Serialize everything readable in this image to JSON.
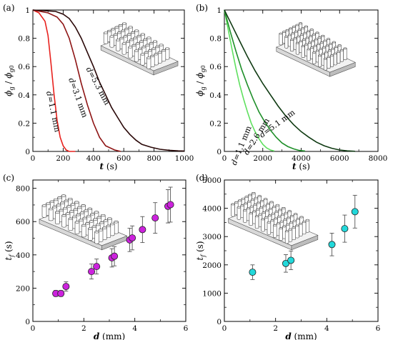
{
  "colors": {
    "a_short": "#e8211d",
    "a_mid": "#8e1414",
    "a_long": "#2a0808",
    "b_light": "#5fe05f",
    "b_mid": "#1f8f2a",
    "b_dark": "#0f3a12",
    "c_marker": "#cc22dd",
    "d_marker": "#22d8da"
  },
  "icons": [
    "pillar-array-sparse-icon",
    "pillar-array-dense-icon"
  ],
  "chart_data": [
    {
      "id": "a",
      "type": "line",
      "panel_label": "(a)",
      "xlabel_var": "t",
      "xlabel_unit": "(s)",
      "ylabel_num": "ϕ",
      "ylabel_num_sub": "g",
      "ylabel_den": "ϕ",
      "ylabel_den_sub": "g0",
      "xlim": [
        0,
        1000
      ],
      "ylim": [
        0,
        1
      ],
      "xticks": [
        "0",
        "200",
        "400",
        "600",
        "800",
        "1000"
      ],
      "yticks": [
        "0",
        "0.2",
        "0.4",
        "0.6",
        "0.8",
        "1"
      ],
      "xtick_values": [
        0,
        200,
        400,
        600,
        800,
        1000
      ],
      "ytick_values": [
        0,
        0.2,
        0.4,
        0.6,
        0.8,
        1
      ],
      "series": [
        {
          "name": "d=1.1 mm",
          "color_key": "a_short",
          "x": [
            0,
            40,
            80,
            100,
            120,
            140,
            160,
            180,
            200,
            220,
            240,
            280
          ],
          "y": [
            1,
            0.98,
            0.92,
            0.82,
            0.62,
            0.4,
            0.22,
            0.1,
            0.04,
            0.01,
            0.0,
            0.0
          ]
        },
        {
          "name": "d=3.1 mm",
          "color_key": "a_mid",
          "x": [
            0,
            100,
            160,
            200,
            240,
            280,
            320,
            360,
            400,
            440,
            480,
            540,
            580
          ],
          "y": [
            1,
            0.98,
            0.95,
            0.9,
            0.8,
            0.65,
            0.48,
            0.33,
            0.2,
            0.1,
            0.04,
            0.01,
            0.0
          ]
        },
        {
          "name": "d=5.3 mm",
          "color_key": "a_long",
          "x": [
            0,
            150,
            200,
            240,
            280,
            320,
            360,
            400,
            440,
            480,
            520,
            560,
            600,
            640,
            680,
            720,
            780,
            840,
            900,
            960,
            1000
          ],
          "y": [
            1,
            0.99,
            0.97,
            0.94,
            0.88,
            0.8,
            0.7,
            0.6,
            0.49,
            0.4,
            0.31,
            0.24,
            0.17,
            0.12,
            0.08,
            0.05,
            0.03,
            0.015,
            0.008,
            0.004,
            0.003
          ]
        }
      ]
    },
    {
      "id": "b",
      "type": "line",
      "panel_label": "(b)",
      "xlabel_var": "t",
      "xlabel_unit": "(s)",
      "ylabel_num": "ϕ",
      "ylabel_num_sub": "g",
      "ylabel_den": "ϕ",
      "ylabel_den_sub": "g0",
      "xlim": [
        0,
        8000
      ],
      "ylim": [
        0,
        1
      ],
      "xticks": [
        "0",
        "2000",
        "4000",
        "6000",
        "8000"
      ],
      "yticks": [
        "0",
        "0.2",
        "0.4",
        "0.6",
        "0.8",
        "1"
      ],
      "xtick_values": [
        0,
        2000,
        4000,
        6000,
        8000
      ],
      "ytick_values": [
        0,
        0.2,
        0.4,
        0.6,
        0.8,
        1
      ],
      "series": [
        {
          "name": "d=1.1 mm",
          "color_key": "b_light",
          "x": [
            0,
            200,
            400,
            600,
            800,
            1000,
            1200,
            1400,
            1600,
            1800,
            2000,
            2200,
            2400,
            2600
          ],
          "y": [
            1,
            0.86,
            0.72,
            0.59,
            0.47,
            0.37,
            0.28,
            0.2,
            0.14,
            0.09,
            0.05,
            0.025,
            0.01,
            0.003
          ]
        },
        {
          "name": "d=2.6 mm",
          "color_key": "b_mid",
          "x": [
            0,
            300,
            600,
            900,
            1200,
            1500,
            1800,
            2100,
            2400,
            2700,
            3000,
            3300,
            3600,
            3900,
            4200
          ],
          "y": [
            1,
            0.85,
            0.71,
            0.58,
            0.47,
            0.37,
            0.28,
            0.21,
            0.15,
            0.1,
            0.06,
            0.035,
            0.018,
            0.007,
            0.003
          ]
        },
        {
          "name": "d=5.1 mm",
          "color_key": "b_dark",
          "x": [
            0,
            400,
            800,
            1200,
            1600,
            2000,
            2400,
            2800,
            3200,
            3600,
            4000,
            4400,
            4800,
            5200,
            5600,
            6000,
            6400,
            6800
          ],
          "y": [
            1,
            0.89,
            0.78,
            0.67,
            0.57,
            0.48,
            0.4,
            0.32,
            0.25,
            0.19,
            0.14,
            0.1,
            0.065,
            0.04,
            0.022,
            0.01,
            0.004,
            0.001
          ]
        }
      ]
    },
    {
      "id": "c",
      "type": "scatter",
      "panel_label": "(c)",
      "xlabel_var": "d",
      "xlabel_unit": "(mm)",
      "ylabel_var": "t",
      "ylabel_sub": "f",
      "ylabel_unit": "(s)",
      "xlim": [
        0,
        6
      ],
      "ylim": [
        0,
        850
      ],
      "xticks": [
        "0",
        "2",
        "4",
        "6"
      ],
      "yticks": [
        "0",
        "200",
        "400",
        "600",
        "800"
      ],
      "xtick_values": [
        0,
        2,
        4,
        6
      ],
      "ytick_values": [
        0,
        200,
        400,
        600,
        800
      ],
      "color_key": "c_marker",
      "points": [
        {
          "x": 0.9,
          "y": 168,
          "err": 18
        },
        {
          "x": 1.1,
          "y": 168,
          "err": 18
        },
        {
          "x": 1.3,
          "y": 210,
          "err": 28
        },
        {
          "x": 2.3,
          "y": 300,
          "err": 45
        },
        {
          "x": 2.5,
          "y": 330,
          "err": 45
        },
        {
          "x": 3.1,
          "y": 382,
          "err": 55
        },
        {
          "x": 3.2,
          "y": 392,
          "err": 58
        },
        {
          "x": 3.8,
          "y": 490,
          "err": 70
        },
        {
          "x": 3.9,
          "y": 502,
          "err": 72
        },
        {
          "x": 4.3,
          "y": 552,
          "err": 78
        },
        {
          "x": 4.8,
          "y": 622,
          "err": 92
        },
        {
          "x": 5.3,
          "y": 692,
          "err": 100
        },
        {
          "x": 5.4,
          "y": 702,
          "err": 105
        }
      ]
    },
    {
      "id": "d",
      "type": "scatter",
      "panel_label": "(d)",
      "xlabel_var": "d",
      "xlabel_unit": "(mm)",
      "ylabel_var": "t",
      "ylabel_sub": "f",
      "ylabel_unit": "(s)",
      "xlim": [
        0,
        6
      ],
      "ylim": [
        0,
        5000
      ],
      "xticks": [
        "0",
        "2",
        "4",
        "6"
      ],
      "yticks": [
        "0",
        "1000",
        "2000",
        "3000",
        "4000",
        "5000"
      ],
      "xtick_values": [
        0,
        2,
        4,
        6
      ],
      "ytick_values": [
        0,
        1000,
        2000,
        3000,
        4000,
        5000
      ],
      "color_key": "d_marker",
      "points": [
        {
          "x": 1.1,
          "y": 1740,
          "err": 260
        },
        {
          "x": 2.4,
          "y": 2050,
          "err": 310
        },
        {
          "x": 2.6,
          "y": 2160,
          "err": 330
        },
        {
          "x": 4.2,
          "y": 2720,
          "err": 400
        },
        {
          "x": 4.7,
          "y": 3280,
          "err": 480
        },
        {
          "x": 5.1,
          "y": 3880,
          "err": 580
        }
      ]
    }
  ]
}
